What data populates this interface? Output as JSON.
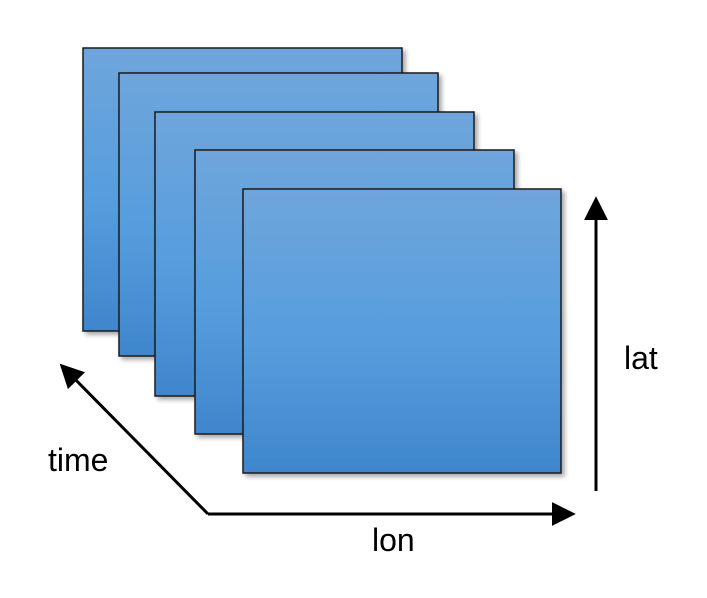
{
  "diagram": {
    "layers": 5,
    "axes": {
      "time": "time",
      "lon": "lon",
      "lat": "lat"
    },
    "colors": {
      "layer_top": "#6fa5dc",
      "layer_middle": "#559ddd",
      "layer_bottom": "#3f86cc",
      "layer_stroke": "#1a1a1a",
      "arrow": "#000000"
    }
  }
}
